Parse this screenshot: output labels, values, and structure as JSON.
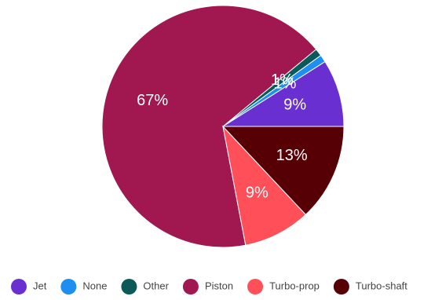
{
  "chart_data": {
    "type": "pie",
    "categories": [
      "Jet",
      "None",
      "Other",
      "Piston",
      "Turbo-prop",
      "Turbo-shaft"
    ],
    "values": [
      9,
      1,
      1,
      67,
      9,
      13
    ],
    "value_labels": [
      "9%",
      "1%",
      "1%",
      "67%",
      "9%",
      "13%"
    ],
    "colors": [
      "#6a2fd0",
      "#1e8ff0",
      "#0b5a58",
      "#a0184f",
      "#ff5059",
      "#560006"
    ],
    "legend": "bottom"
  }
}
